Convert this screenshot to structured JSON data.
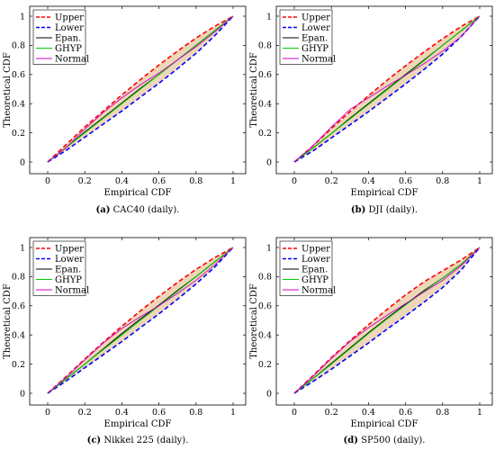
{
  "figure": {
    "colors": {
      "Upper": "#ff0000",
      "Lower": "#0000ff",
      "Epan.": "#000000",
      "GHYP": "#00cc00",
      "Normal": "#cc00cc",
      "band": "#e8c8a0"
    }
  },
  "chart_data": [
    {
      "type": "line",
      "caption_label": "(a)",
      "caption_text": "CAC40 (daily).",
      "xlabel": "Empirical CDF",
      "ylabel": "Theoretical CDF",
      "xlim": [
        0,
        1
      ],
      "ylim": [
        0,
        1
      ],
      "xticks": [
        "0",
        "0.2",
        "0.4",
        "0.6",
        "0.8",
        "1"
      ],
      "yticks": [
        "0",
        "0.2",
        "0.4",
        "0.6",
        "0.8",
        "1"
      ],
      "legend_position": "top-left",
      "series": [
        {
          "name": "Upper",
          "x": [
            0,
            0.1,
            0.2,
            0.3,
            0.4,
            0.5,
            0.6,
            0.7,
            0.8,
            0.9,
            1
          ],
          "y": [
            0,
            0.12,
            0.24,
            0.35,
            0.46,
            0.565,
            0.665,
            0.76,
            0.85,
            0.93,
            1
          ]
        },
        {
          "name": "Lower",
          "x": [
            0,
            0.1,
            0.2,
            0.3,
            0.4,
            0.5,
            0.6,
            0.7,
            0.8,
            0.9,
            1
          ],
          "y": [
            0,
            0.08,
            0.17,
            0.26,
            0.35,
            0.445,
            0.54,
            0.64,
            0.745,
            0.865,
            1
          ]
        },
        {
          "name": "Epan.",
          "x": [
            0,
            0.1,
            0.2,
            0.3,
            0.4,
            0.5,
            0.6,
            0.7,
            0.8,
            0.9,
            1
          ],
          "y": [
            0,
            0.1,
            0.205,
            0.305,
            0.405,
            0.505,
            0.6,
            0.7,
            0.8,
            0.9,
            1
          ]
        },
        {
          "name": "GHYP",
          "x": [
            0,
            0.1,
            0.2,
            0.3,
            0.4,
            0.5,
            0.6,
            0.7,
            0.8,
            0.9,
            1
          ],
          "y": [
            0,
            0.1,
            0.2,
            0.3,
            0.4,
            0.5,
            0.6,
            0.7,
            0.8,
            0.9,
            1
          ]
        },
        {
          "name": "Normal",
          "x": [
            0,
            0.1,
            0.2,
            0.3,
            0.4,
            0.5,
            0.6,
            0.7,
            0.8,
            0.9,
            1
          ],
          "y": [
            0,
            0.1,
            0.225,
            0.34,
            0.44,
            0.53,
            0.61,
            0.7,
            0.79,
            0.89,
            1
          ]
        }
      ]
    },
    {
      "type": "line",
      "caption_label": "(b)",
      "caption_text": "DJI (daily).",
      "xlabel": "Empirical CDF",
      "ylabel": "Theoretical CDF",
      "xlim": [
        0,
        1
      ],
      "ylim": [
        0,
        1
      ],
      "xticks": [
        "0",
        "0.2",
        "0.4",
        "0.6",
        "0.8",
        "1"
      ],
      "yticks": [
        "0",
        "0.2",
        "0.4",
        "0.6",
        "0.8",
        "1"
      ],
      "legend_position": "top-left",
      "series": [
        {
          "name": "Upper",
          "x": [
            0,
            0.1,
            0.2,
            0.3,
            0.4,
            0.5,
            0.6,
            0.7,
            0.8,
            0.9,
            1
          ],
          "y": [
            0,
            0.11,
            0.23,
            0.345,
            0.455,
            0.56,
            0.66,
            0.755,
            0.845,
            0.93,
            1
          ]
        },
        {
          "name": "Lower",
          "x": [
            0,
            0.1,
            0.2,
            0.3,
            0.4,
            0.5,
            0.6,
            0.7,
            0.8,
            0.9,
            1
          ],
          "y": [
            0,
            0.075,
            0.165,
            0.255,
            0.345,
            0.44,
            0.535,
            0.635,
            0.74,
            0.86,
            1
          ]
        },
        {
          "name": "Epan.",
          "x": [
            0,
            0.1,
            0.2,
            0.3,
            0.4,
            0.5,
            0.6,
            0.7,
            0.8,
            0.9,
            1
          ],
          "y": [
            0,
            0.095,
            0.195,
            0.3,
            0.4,
            0.5,
            0.6,
            0.7,
            0.8,
            0.9,
            1
          ]
        },
        {
          "name": "GHYP",
          "x": [
            0,
            0.1,
            0.2,
            0.3,
            0.4,
            0.5,
            0.6,
            0.7,
            0.8,
            0.9,
            1
          ],
          "y": [
            0,
            0.095,
            0.195,
            0.295,
            0.395,
            0.495,
            0.595,
            0.695,
            0.8,
            0.9,
            1
          ]
        },
        {
          "name": "Normal",
          "x": [
            0,
            0.1,
            0.2,
            0.3,
            0.4,
            0.5,
            0.6,
            0.7,
            0.8,
            0.9,
            1
          ],
          "y": [
            0,
            0.11,
            0.24,
            0.36,
            0.44,
            0.52,
            0.595,
            0.675,
            0.76,
            0.86,
            1
          ]
        }
      ]
    },
    {
      "type": "line",
      "caption_label": "(c)",
      "caption_text": "Nikkei 225 (daily).",
      "xlabel": "Empirical CDF",
      "ylabel": "Theoretical CDF",
      "xlim": [
        0,
        1
      ],
      "ylim": [
        0,
        1
      ],
      "xticks": [
        "0",
        "0.2",
        "0.4",
        "0.6",
        "0.8",
        "1"
      ],
      "yticks": [
        "0",
        "0.2",
        "0.4",
        "0.6",
        "0.8",
        "1"
      ],
      "legend_position": "top-left",
      "series": [
        {
          "name": "Upper",
          "x": [
            0,
            0.1,
            0.2,
            0.3,
            0.4,
            0.5,
            0.6,
            0.7,
            0.8,
            0.9,
            1
          ],
          "y": [
            0,
            0.115,
            0.235,
            0.35,
            0.46,
            0.565,
            0.665,
            0.76,
            0.85,
            0.93,
            1
          ]
        },
        {
          "name": "Lower",
          "x": [
            0,
            0.1,
            0.2,
            0.3,
            0.4,
            0.5,
            0.6,
            0.7,
            0.8,
            0.9,
            1
          ],
          "y": [
            0,
            0.085,
            0.175,
            0.265,
            0.355,
            0.45,
            0.545,
            0.645,
            0.75,
            0.865,
            1
          ]
        },
        {
          "name": "Epan.",
          "x": [
            0,
            0.1,
            0.2,
            0.3,
            0.4,
            0.5,
            0.6,
            0.7,
            0.8,
            0.9,
            1
          ],
          "y": [
            0,
            0.1,
            0.2,
            0.305,
            0.41,
            0.51,
            0.605,
            0.705,
            0.8,
            0.9,
            1
          ]
        },
        {
          "name": "GHYP",
          "x": [
            0,
            0.1,
            0.2,
            0.3,
            0.4,
            0.5,
            0.6,
            0.7,
            0.8,
            0.9,
            1
          ],
          "y": [
            0,
            0.1,
            0.2,
            0.3,
            0.4,
            0.5,
            0.6,
            0.7,
            0.8,
            0.9,
            1
          ]
        },
        {
          "name": "Normal",
          "x": [
            0,
            0.1,
            0.2,
            0.3,
            0.4,
            0.5,
            0.6,
            0.7,
            0.8,
            0.9,
            1
          ],
          "y": [
            0,
            0.11,
            0.23,
            0.345,
            0.445,
            0.525,
            0.6,
            0.685,
            0.775,
            0.88,
            1
          ]
        }
      ]
    },
    {
      "type": "line",
      "caption_label": "(d)",
      "caption_text": "SP500 (daily).",
      "xlabel": "Empirical CDF",
      "ylabel": "Theoretical CDF",
      "xlim": [
        0,
        1
      ],
      "ylim": [
        0,
        1
      ],
      "xticks": [
        "0",
        "0.2",
        "0.4",
        "0.6",
        "0.8",
        "1"
      ],
      "yticks": [
        "0",
        "0.2",
        "0.4",
        "0.6",
        "0.8",
        "1"
      ],
      "legend_position": "top-left",
      "series": [
        {
          "name": "Upper",
          "x": [
            0,
            0.1,
            0.2,
            0.3,
            0.4,
            0.5,
            0.6,
            0.7,
            0.8,
            0.9,
            1
          ],
          "y": [
            0,
            0.12,
            0.245,
            0.36,
            0.47,
            0.575,
            0.675,
            0.765,
            0.84,
            0.915,
            1
          ]
        },
        {
          "name": "Lower",
          "x": [
            0,
            0.1,
            0.2,
            0.3,
            0.4,
            0.5,
            0.6,
            0.7,
            0.8,
            0.9,
            1
          ],
          "y": [
            0,
            0.08,
            0.165,
            0.255,
            0.345,
            0.44,
            0.53,
            0.625,
            0.725,
            0.845,
            1
          ]
        },
        {
          "name": "Epan.",
          "x": [
            0,
            0.1,
            0.2,
            0.3,
            0.4,
            0.5,
            0.6,
            0.7,
            0.8,
            0.9,
            1
          ],
          "y": [
            0,
            0.1,
            0.205,
            0.31,
            0.415,
            0.515,
            0.61,
            0.705,
            0.79,
            0.885,
            1
          ]
        },
        {
          "name": "GHYP",
          "x": [
            0,
            0.1,
            0.2,
            0.3,
            0.4,
            0.5,
            0.6,
            0.7,
            0.8,
            0.9,
            1
          ],
          "y": [
            0,
            0.1,
            0.2,
            0.305,
            0.41,
            0.51,
            0.605,
            0.7,
            0.79,
            0.885,
            1
          ]
        },
        {
          "name": "Normal",
          "x": [
            0,
            0.1,
            0.2,
            0.3,
            0.4,
            0.5,
            0.6,
            0.7,
            0.8,
            0.9,
            1
          ],
          "y": [
            0,
            0.115,
            0.24,
            0.355,
            0.45,
            0.535,
            0.615,
            0.695,
            0.775,
            0.875,
            1
          ]
        }
      ]
    }
  ]
}
